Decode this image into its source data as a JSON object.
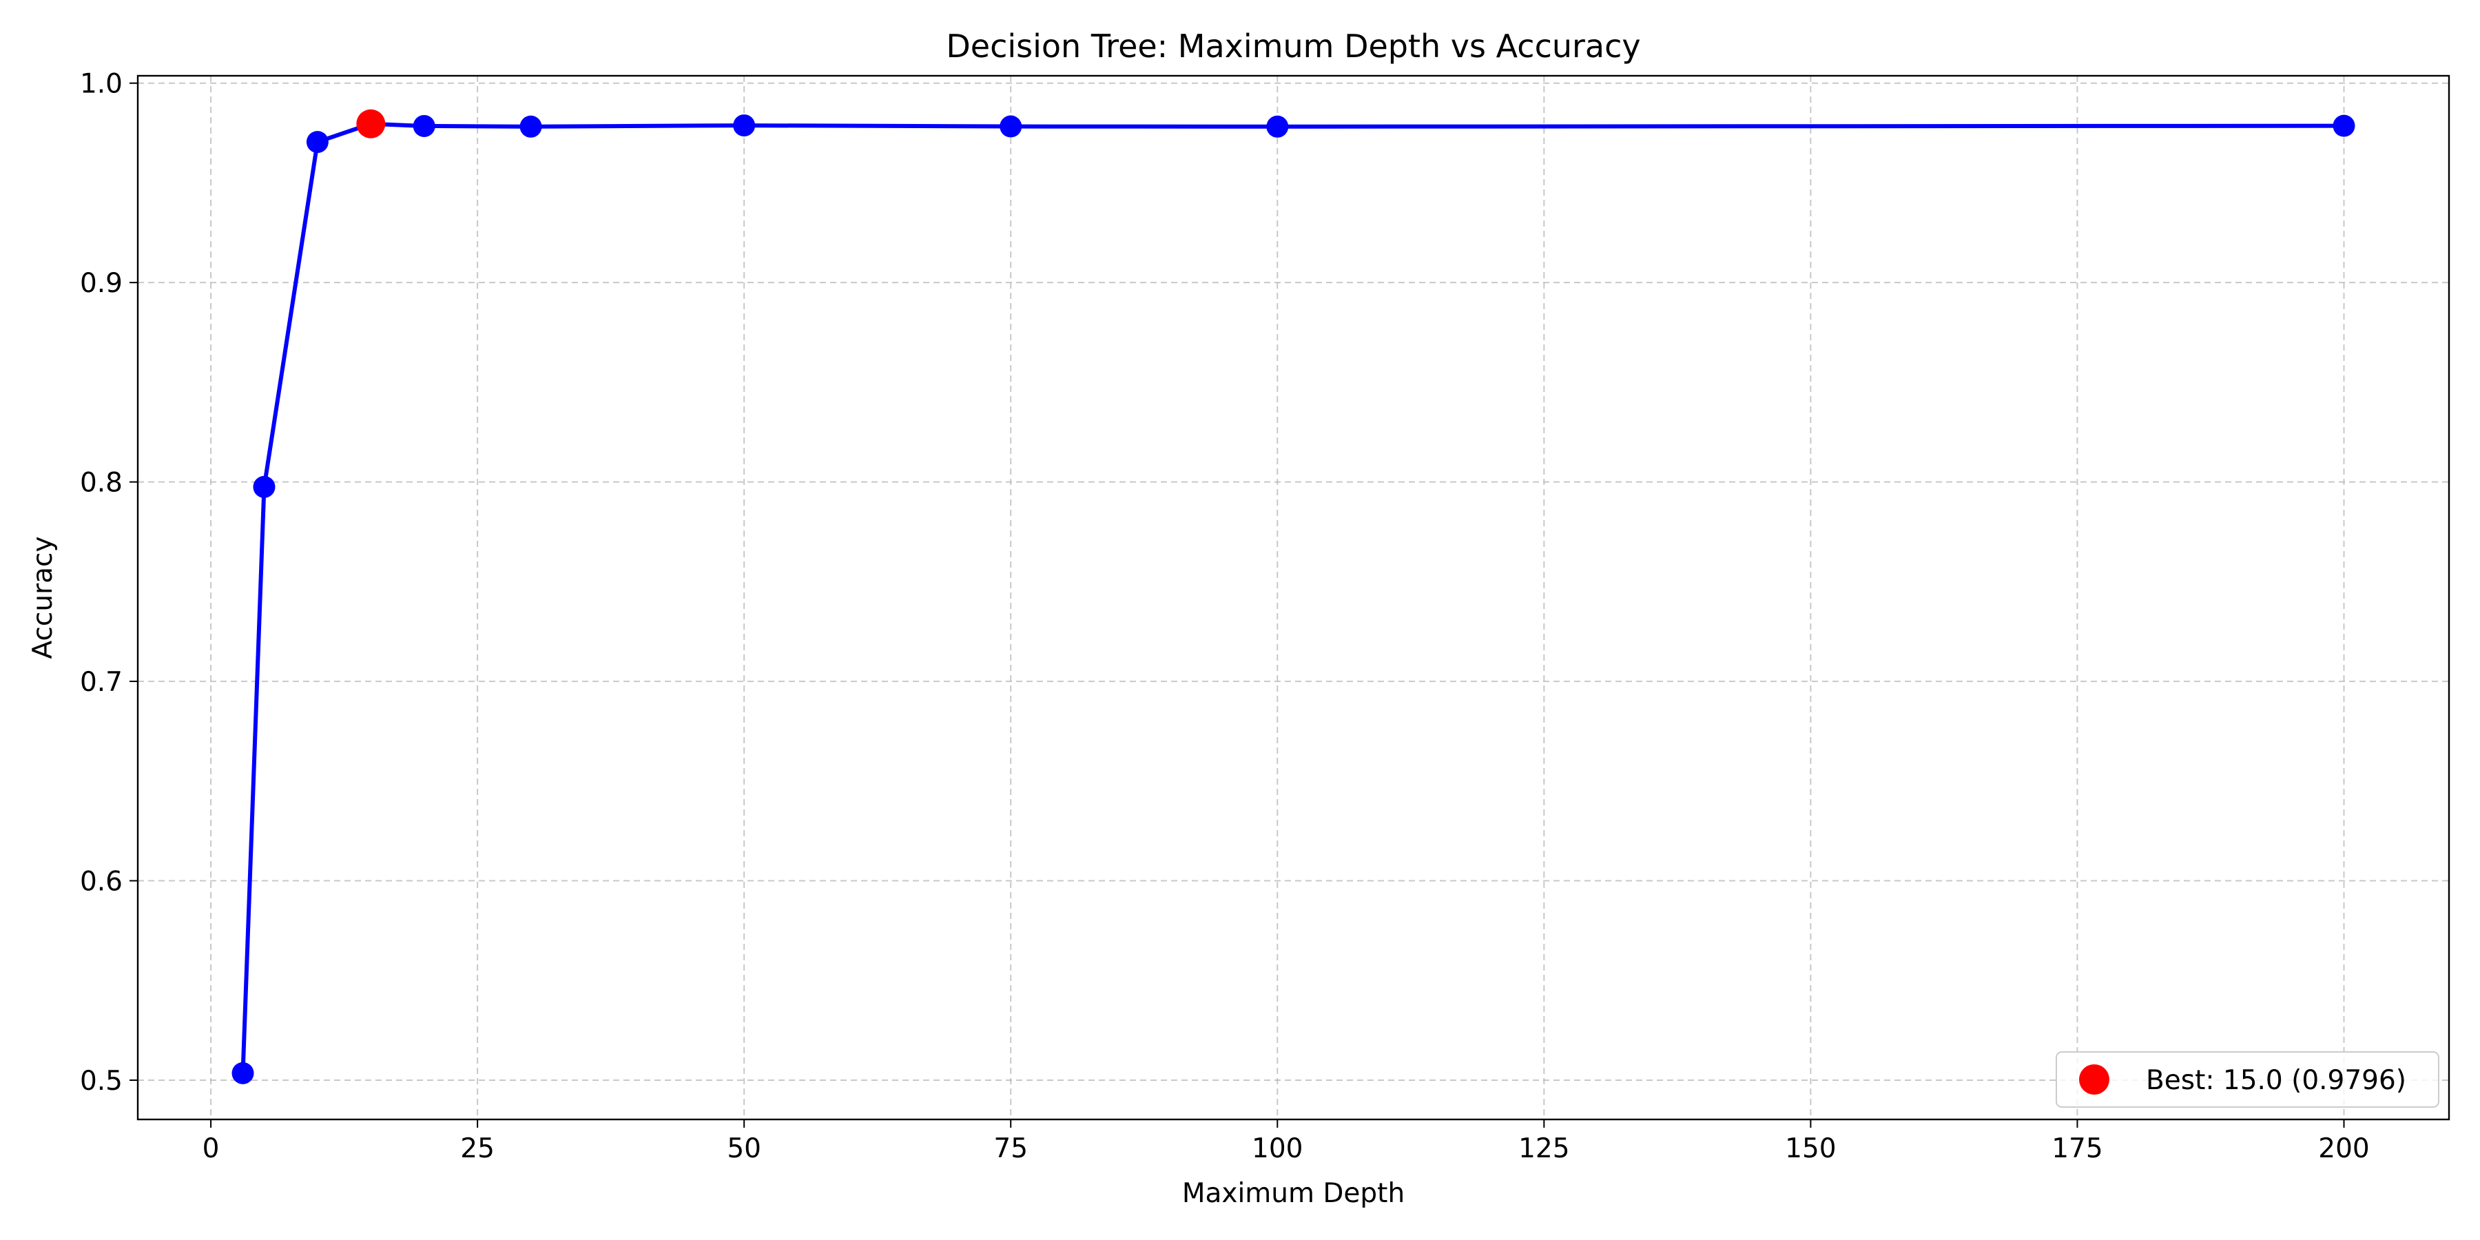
{
  "chart_data": {
    "type": "line",
    "title": "Decision Tree: Maximum Depth vs Accuracy",
    "xlabel": "Maximum Depth",
    "ylabel": "Accuracy",
    "xlim": [
      -6.85,
      209.85
    ],
    "ylim": [
      0.4803,
      1.0037
    ],
    "xticks": [
      0,
      25,
      50,
      75,
      100,
      125,
      150,
      175,
      200
    ],
    "yticks": [
      0.5,
      0.6,
      0.7,
      0.8,
      0.9,
      1.0
    ],
    "xtick_labels": [
      "0",
      "25",
      "50",
      "75",
      "100",
      "125",
      "150",
      "175",
      "200"
    ],
    "ytick_labels": [
      "0.5",
      "0.6",
      "0.7",
      "0.8",
      "0.9",
      "1.0"
    ],
    "grid": true,
    "legend_position": "lower right",
    "series": [
      {
        "color": "#0000ff",
        "x": [
          3,
          5,
          10,
          15,
          20,
          30,
          50,
          75,
          100,
          200
        ],
        "y": [
          0.5035,
          0.7975,
          0.9705,
          0.9796,
          0.9785,
          0.9782,
          0.9788,
          0.9783,
          0.9782,
          0.9786
        ]
      }
    ],
    "highlight": {
      "label": "Best: 15.0 (0.9796)",
      "x": 15,
      "y": 0.9796,
      "color": "#ff0000"
    }
  }
}
